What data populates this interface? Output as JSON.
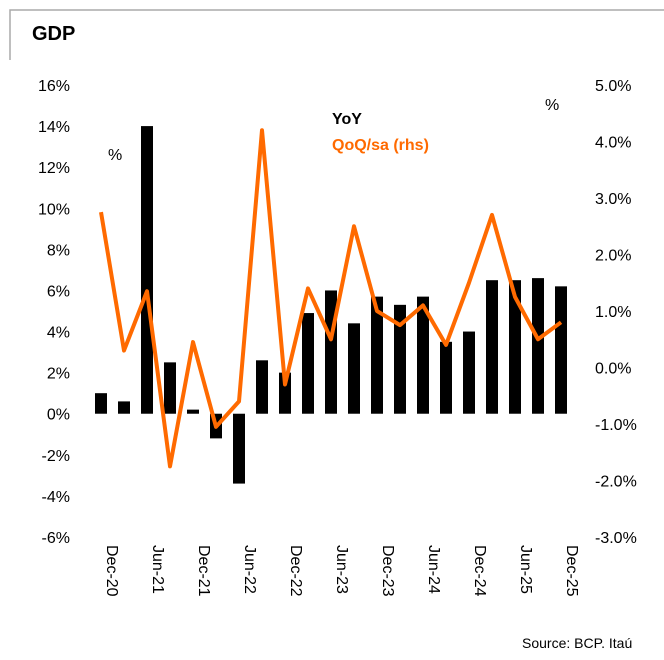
{
  "chart_data": {
    "type": "bar_line",
    "title": "GDP",
    "left_unit": "%",
    "right_unit": "%",
    "source": "Source: BCP. Itaú",
    "categories": [
      "Dec-20",
      null,
      "Jun-21",
      null,
      "Dec-21",
      null,
      "Jun-22",
      null,
      "Dec-22",
      null,
      "Jun-23",
      null,
      "Dec-23",
      null,
      "Jun-24",
      null,
      "Dec-24",
      null,
      "Jun-25",
      null,
      "Dec-25"
    ],
    "series": [
      {
        "name": "YoY",
        "color": "#000000",
        "kind": "bar",
        "axis": "y",
        "values": [
          1.0,
          0.6,
          14.0,
          2.5,
          0.2,
          -1.2,
          -3.4,
          2.6,
          2.0,
          4.9,
          6.0,
          4.4,
          5.7,
          5.3,
          5.7,
          3.5,
          4.0,
          6.5,
          6.5,
          6.6,
          6.2
        ]
      },
      {
        "name": "QoQ/sa (rhs)",
        "color": "#ff6a00",
        "kind": "line",
        "axis": "y2",
        "values": [
          2.75,
          0.3,
          1.35,
          -1.75,
          0.45,
          -1.05,
          -0.6,
          4.2,
          -0.3,
          1.4,
          0.5,
          2.5,
          1.0,
          0.75,
          1.1,
          0.4,
          1.5,
          2.7,
          1.25,
          0.5,
          0.8
        ]
      }
    ],
    "ylim": [
      -6,
      16
    ],
    "yticks": [
      {
        "value": -6,
        "label": "-6%"
      },
      {
        "value": -4,
        "label": "-4%"
      },
      {
        "value": -2,
        "label": "-2%"
      },
      {
        "value": 0,
        "label": "0%"
      },
      {
        "value": 2,
        "label": "2%"
      },
      {
        "value": 4,
        "label": "4%"
      },
      {
        "value": 6,
        "label": "6%"
      },
      {
        "value": 8,
        "label": "8%"
      },
      {
        "value": 10,
        "label": "10%"
      },
      {
        "value": 12,
        "label": "12%"
      },
      {
        "value": 14,
        "label": "14%"
      },
      {
        "value": 16,
        "label": "16%"
      }
    ],
    "y2lim": [
      -3,
      5
    ],
    "y2ticks": [
      {
        "value": -3,
        "label": "-3.0%"
      },
      {
        "value": -2,
        "label": "-2.0%"
      },
      {
        "value": -1,
        "label": "-1.0%"
      },
      {
        "value": 0,
        "label": "0.0%"
      },
      {
        "value": 1,
        "label": "1.0%"
      },
      {
        "value": 2,
        "label": "2.0%"
      },
      {
        "value": 3,
        "label": "3.0%"
      },
      {
        "value": 4,
        "label": "4.0%"
      },
      {
        "value": 5,
        "label": "5.0%"
      }
    ]
  }
}
